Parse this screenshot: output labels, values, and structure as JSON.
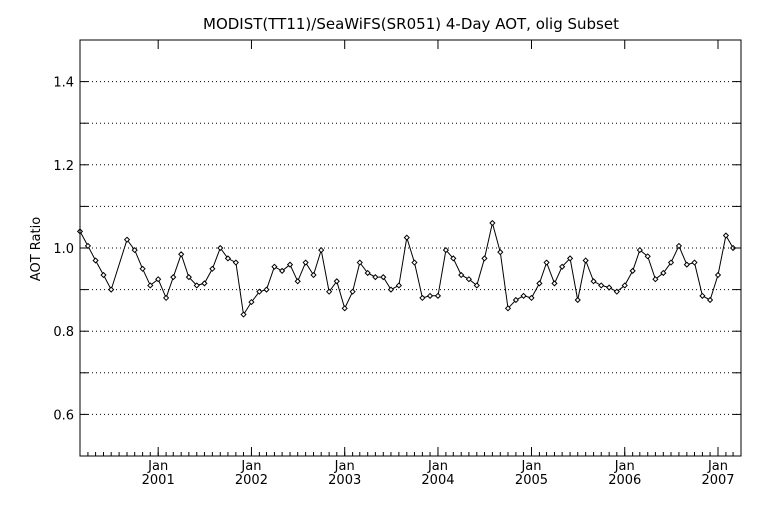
{
  "chart_data": {
    "type": "line",
    "title": "MODIST(TT11)/SeaWiFS(SR051) 4-Day AOT, olig Subset",
    "ylabel": "AOT Ratio",
    "xlabel": "",
    "ylim": [
      0.5,
      1.5
    ],
    "xlim": [
      "2000-03-01",
      "2007-04-01"
    ],
    "y_ticks": [
      {
        "value": 0.6,
        "label": "0.6"
      },
      {
        "value": 0.8,
        "label": "0.8"
      },
      {
        "value": 1.0,
        "label": "1.0"
      },
      {
        "value": 1.2,
        "label": "1.2"
      },
      {
        "value": 1.4,
        "label": "1.4"
      }
    ],
    "y_gridlines": [
      0.6,
      0.7,
      0.8,
      0.9,
      1.0,
      1.1,
      1.2,
      1.3,
      1.4
    ],
    "grid": "horizontal-dotted",
    "x_ticks": [
      {
        "date": "2001-01-01",
        "month": "Jan",
        "year": "2001"
      },
      {
        "date": "2002-01-01",
        "month": "Jan",
        "year": "2002"
      },
      {
        "date": "2003-01-01",
        "month": "Jan",
        "year": "2003"
      },
      {
        "date": "2004-01-01",
        "month": "Jan",
        "year": "2004"
      },
      {
        "date": "2005-01-01",
        "month": "Jan",
        "year": "2005"
      },
      {
        "date": "2006-01-01",
        "month": "Jan",
        "year": "2006"
      },
      {
        "date": "2007-01-01",
        "month": "Jan",
        "year": "2007"
      }
    ],
    "series": [
      {
        "line_color": "#000000",
        "marker": "diamond",
        "points": [
          [
            "2000-03-01",
            1.04
          ],
          [
            "2000-04-01",
            1.005
          ],
          [
            "2000-05-01",
            0.97
          ],
          [
            "2000-06-01",
            0.935
          ],
          [
            "2000-07-01",
            0.9
          ],
          [
            "2000-09-01",
            1.02
          ],
          [
            "2000-10-01",
            0.995
          ],
          [
            "2000-11-01",
            0.95
          ],
          [
            "2000-12-01",
            0.91
          ],
          [
            "2001-01-01",
            0.925
          ],
          [
            "2001-02-01",
            0.88
          ],
          [
            "2001-03-01",
            0.93
          ],
          [
            "2001-04-01",
            0.985
          ],
          [
            "2001-05-01",
            0.93
          ],
          [
            "2001-06-01",
            0.91
          ],
          [
            "2001-07-01",
            0.915
          ],
          [
            "2001-08-01",
            0.95
          ],
          [
            "2001-09-01",
            1.0
          ],
          [
            "2001-10-01",
            0.975
          ],
          [
            "2001-11-01",
            0.965
          ],
          [
            "2001-12-01",
            0.84
          ],
          [
            "2002-01-01",
            0.87
          ],
          [
            "2002-02-01",
            0.895
          ],
          [
            "2002-03-01",
            0.9
          ],
          [
            "2002-04-01",
            0.955
          ],
          [
            "2002-05-01",
            0.945
          ],
          [
            "2002-06-01",
            0.96
          ],
          [
            "2002-07-01",
            0.92
          ],
          [
            "2002-08-01",
            0.965
          ],
          [
            "2002-09-01",
            0.935
          ],
          [
            "2002-10-01",
            0.995
          ],
          [
            "2002-11-01",
            0.895
          ],
          [
            "2002-12-01",
            0.92
          ],
          [
            "2003-01-01",
            0.855
          ],
          [
            "2003-02-01",
            0.895
          ],
          [
            "2003-03-01",
            0.965
          ],
          [
            "2003-04-01",
            0.94
          ],
          [
            "2003-05-01",
            0.93
          ],
          [
            "2003-06-01",
            0.93
          ],
          [
            "2003-07-01",
            0.9
          ],
          [
            "2003-08-01",
            0.91
          ],
          [
            "2003-09-01",
            1.025
          ],
          [
            "2003-10-01",
            0.965
          ],
          [
            "2003-11-01",
            0.88
          ],
          [
            "2003-12-01",
            0.885
          ],
          [
            "2004-01-01",
            0.885
          ],
          [
            "2004-02-01",
            0.995
          ],
          [
            "2004-03-01",
            0.975
          ],
          [
            "2004-04-01",
            0.935
          ],
          [
            "2004-05-01",
            0.925
          ],
          [
            "2004-06-01",
            0.91
          ],
          [
            "2004-07-01",
            0.975
          ],
          [
            "2004-08-01",
            1.06
          ],
          [
            "2004-09-01",
            0.99
          ],
          [
            "2004-10-01",
            0.855
          ],
          [
            "2004-11-01",
            0.875
          ],
          [
            "2004-12-01",
            0.885
          ],
          [
            "2005-01-01",
            0.88
          ],
          [
            "2005-02-01",
            0.915
          ],
          [
            "2005-03-01",
            0.965
          ],
          [
            "2005-04-01",
            0.915
          ],
          [
            "2005-05-01",
            0.955
          ],
          [
            "2005-06-01",
            0.975
          ],
          [
            "2005-07-01",
            0.875
          ],
          [
            "2005-08-01",
            0.97
          ],
          [
            "2005-09-01",
            0.92
          ],
          [
            "2005-10-01",
            0.91
          ],
          [
            "2005-11-01",
            0.905
          ],
          [
            "2005-12-01",
            0.895
          ],
          [
            "2006-01-01",
            0.91
          ],
          [
            "2006-02-01",
            0.945
          ],
          [
            "2006-03-01",
            0.995
          ],
          [
            "2006-04-01",
            0.98
          ],
          [
            "2006-05-01",
            0.925
          ],
          [
            "2006-06-01",
            0.94
          ],
          [
            "2006-07-01",
            0.965
          ],
          [
            "2006-08-01",
            1.005
          ],
          [
            "2006-09-01",
            0.96
          ],
          [
            "2006-10-01",
            0.965
          ],
          [
            "2006-11-01",
            0.885
          ],
          [
            "2006-12-01",
            0.875
          ],
          [
            "2007-01-01",
            0.935
          ],
          [
            "2007-02-01",
            1.03
          ],
          [
            "2007-03-01",
            1.0
          ]
        ]
      }
    ]
  }
}
